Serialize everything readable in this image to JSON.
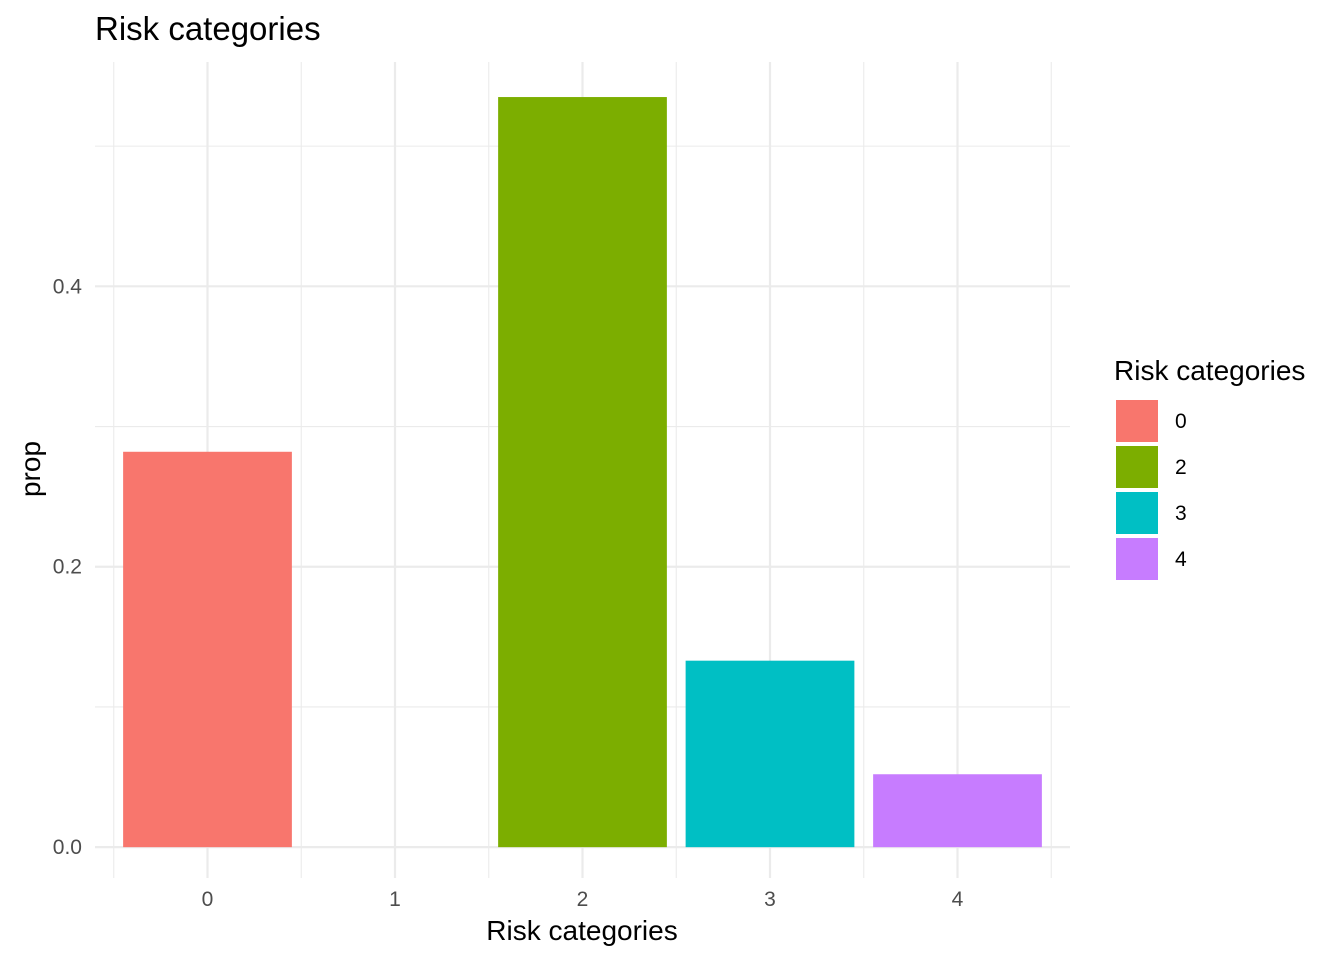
{
  "chart_data": {
    "type": "bar",
    "title": "Risk categories",
    "xlabel": "Risk categories",
    "ylabel": "prop",
    "categories": [
      "0",
      "1",
      "2",
      "3",
      "4"
    ],
    "values": [
      0.282,
      0.0,
      0.535,
      0.133,
      0.052
    ],
    "colors": [
      "#F8766D",
      null,
      "#7CAE00",
      "#00BFC4",
      "#C77CFF"
    ],
    "ylim": [
      -0.022,
      0.56
    ],
    "y_ticks": [
      0.0,
      0.2,
      0.4
    ],
    "y_tick_labels": [
      "0.0",
      "0.2",
      "0.4"
    ],
    "grid": true,
    "legend": {
      "title": "Risk categories",
      "position": "right",
      "items": [
        {
          "label": "0",
          "color": "#F8766D"
        },
        {
          "label": "2",
          "color": "#7CAE00"
        },
        {
          "label": "3",
          "color": "#00BFC4"
        },
        {
          "label": "4",
          "color": "#C77CFF"
        }
      ]
    }
  }
}
